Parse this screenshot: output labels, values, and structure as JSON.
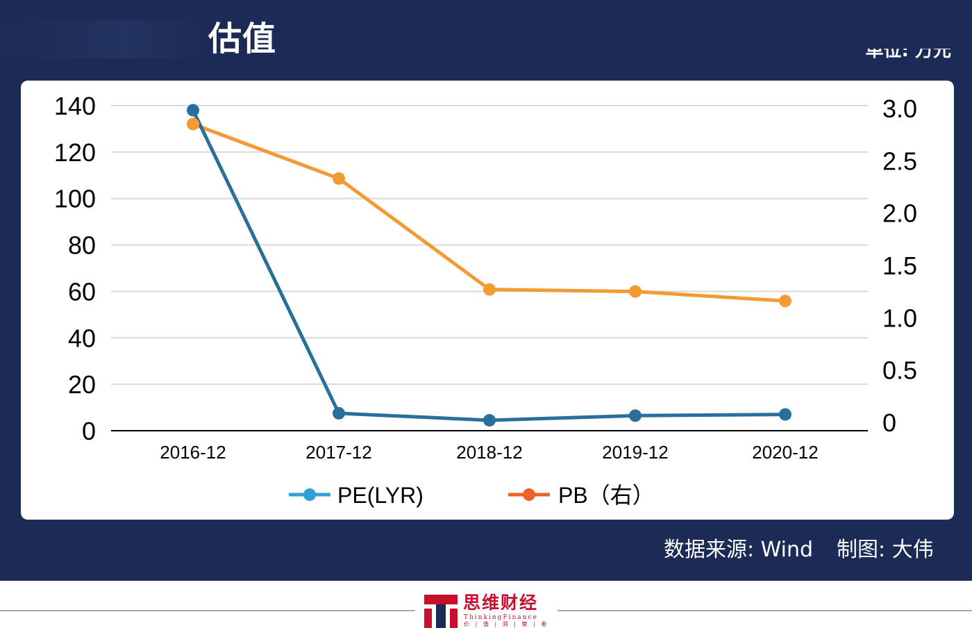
{
  "header": {
    "title": "估值",
    "unit": "单位: 万元"
  },
  "footer": {
    "source": "数据来源: Wind",
    "credit": "制图: 大伟",
    "logo_name": "思维财经",
    "logo_sub": "ThinkingFinance",
    "logo_motto": "价 | 值 | 洞 | 察 | 者"
  },
  "colors": {
    "banner": "#1c2b55",
    "pe_line": "#2a6e9c",
    "pb_line": "#f39a35",
    "pe_legend": "#2f9fd4",
    "pb_legend": "#e8632a",
    "grid": "#d9d9d9",
    "axis": "#000000",
    "logo_red": "#c8102e"
  },
  "chart_data": {
    "type": "line",
    "categories": [
      "2016-12",
      "2017-12",
      "2018-12",
      "2019-12",
      "2020-12"
    ],
    "series": [
      {
        "name": "PE(LYR)",
        "axis": "left",
        "values": [
          138,
          7.5,
          4.5,
          6.5,
          7
        ]
      },
      {
        "name": "PB（右）",
        "axis": "right",
        "values": [
          2.85,
          2.33,
          1.27,
          1.25,
          1.16
        ]
      }
    ],
    "y_left": {
      "min": 0,
      "max": 140,
      "ticks": [
        "0",
        "20",
        "40",
        "60",
        "80",
        "100",
        "120",
        "140"
      ]
    },
    "y_right": {
      "min": 0,
      "max": 3.0,
      "ticks": [
        "0",
        "0.5",
        "1.0",
        "1.5",
        "2.0",
        "2.5",
        "3.0"
      ]
    },
    "grid": true,
    "legend_position": "bottom"
  }
}
